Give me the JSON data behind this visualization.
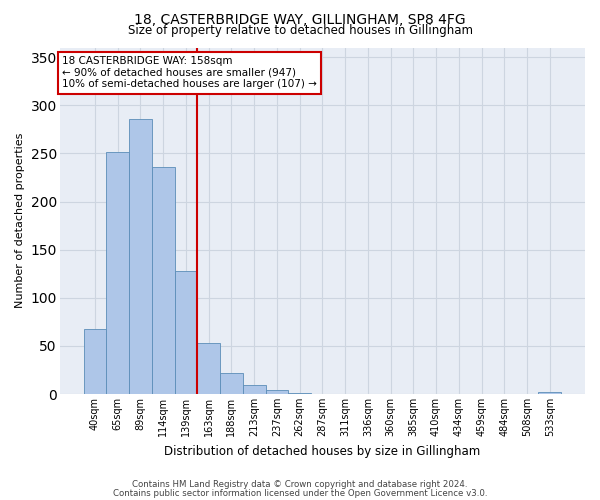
{
  "title": "18, CASTERBRIDGE WAY, GILLINGHAM, SP8 4FG",
  "subtitle": "Size of property relative to detached houses in Gillingham",
  "xlabel": "Distribution of detached houses by size in Gillingham",
  "ylabel": "Number of detached properties",
  "categories": [
    "40sqm",
    "65sqm",
    "89sqm",
    "114sqm",
    "139sqm",
    "163sqm",
    "188sqm",
    "213sqm",
    "237sqm",
    "262sqm",
    "287sqm",
    "311sqm",
    "336sqm",
    "360sqm",
    "385sqm",
    "410sqm",
    "434sqm",
    "459sqm",
    "484sqm",
    "508sqm",
    "533sqm"
  ],
  "values": [
    68,
    251,
    286,
    236,
    128,
    53,
    22,
    9,
    4,
    1,
    0,
    0,
    0,
    0,
    0,
    0,
    0,
    0,
    0,
    0,
    2
  ],
  "bar_color": "#aec6e8",
  "bar_edge_color": "#5b8db8",
  "vline_color": "#cc0000",
  "annotation_text": "18 CASTERBRIDGE WAY: 158sqm\n← 90% of detached houses are smaller (947)\n10% of semi-detached houses are larger (107) →",
  "annotation_box_color": "#ffffff",
  "annotation_box_edge_color": "#cc0000",
  "ylim": [
    0,
    360
  ],
  "yticks": [
    0,
    50,
    100,
    150,
    200,
    250,
    300,
    350
  ],
  "footer_line1": "Contains HM Land Registry data © Crown copyright and database right 2024.",
  "footer_line2": "Contains public sector information licensed under the Open Government Licence v3.0.",
  "background_color": "#ffffff",
  "grid_color": "#cdd5e0",
  "plot_bg_color": "#e8edf5"
}
